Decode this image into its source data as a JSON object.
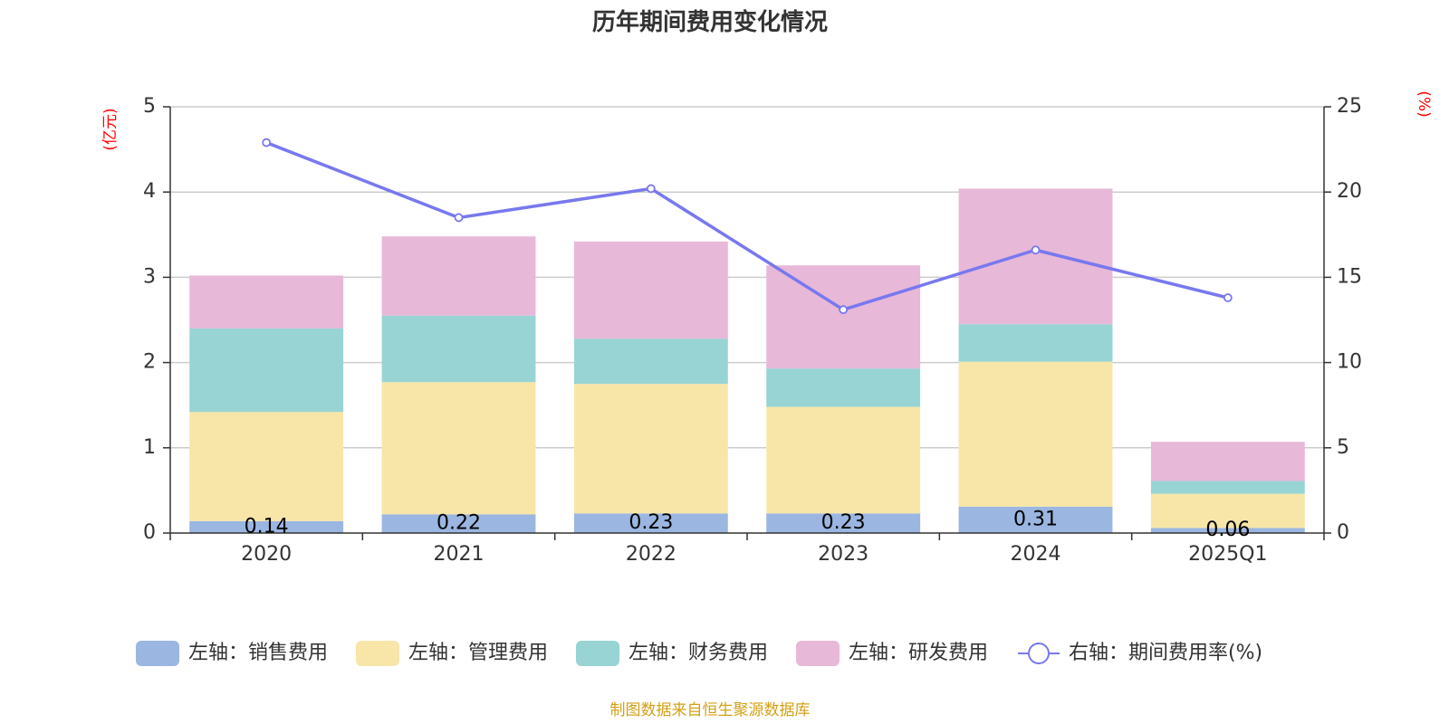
{
  "chart_data": {
    "type": "bar",
    "title": "历年期间费用变化情况",
    "categories": [
      "2020",
      "2021",
      "2022",
      "2023",
      "2024",
      "2025Q1"
    ],
    "left_axis": {
      "unit": "(亿元)",
      "ylim": [
        0,
        5
      ],
      "ticks": [
        "0",
        "1",
        "2",
        "3",
        "4",
        "5"
      ]
    },
    "right_axis": {
      "unit": "(%)",
      "ylim": [
        0,
        25
      ],
      "ticks": [
        "0",
        "5",
        "10",
        "15",
        "20",
        "25"
      ]
    },
    "series": [
      {
        "name": "左轴：销售费用",
        "axis": "left",
        "kind": "bar",
        "color": "#9bb6e1",
        "values": [
          0.14,
          0.22,
          0.23,
          0.23,
          0.31,
          0.06
        ],
        "labels": [
          "0.14",
          "0.22",
          "0.23",
          "0.23",
          "0.31",
          "0.06"
        ]
      },
      {
        "name": "左轴：管理费用",
        "axis": "left",
        "kind": "bar",
        "color": "#f7e6a8",
        "values": [
          1.28,
          1.55,
          1.52,
          1.25,
          1.7,
          0.4
        ]
      },
      {
        "name": "左轴：财务费用",
        "axis": "left",
        "kind": "bar",
        "color": "#98d4d4",
        "values": [
          0.98,
          0.78,
          0.53,
          0.45,
          0.44,
          0.15
        ]
      },
      {
        "name": "左轴：研发费用",
        "axis": "left",
        "kind": "bar",
        "color": "#e7b8d8",
        "values": [
          0.62,
          0.93,
          1.14,
          1.21,
          1.59,
          0.46
        ]
      },
      {
        "name": "右轴：期间费用率(%)",
        "axis": "right",
        "kind": "line",
        "color": "#7878ef",
        "values": [
          22.9,
          18.5,
          20.2,
          13.1,
          16.6,
          13.8
        ]
      }
    ],
    "grid": true,
    "legend_position": "bottom"
  },
  "footer": {
    "source": "制图数据来自恒生聚源数据库"
  }
}
